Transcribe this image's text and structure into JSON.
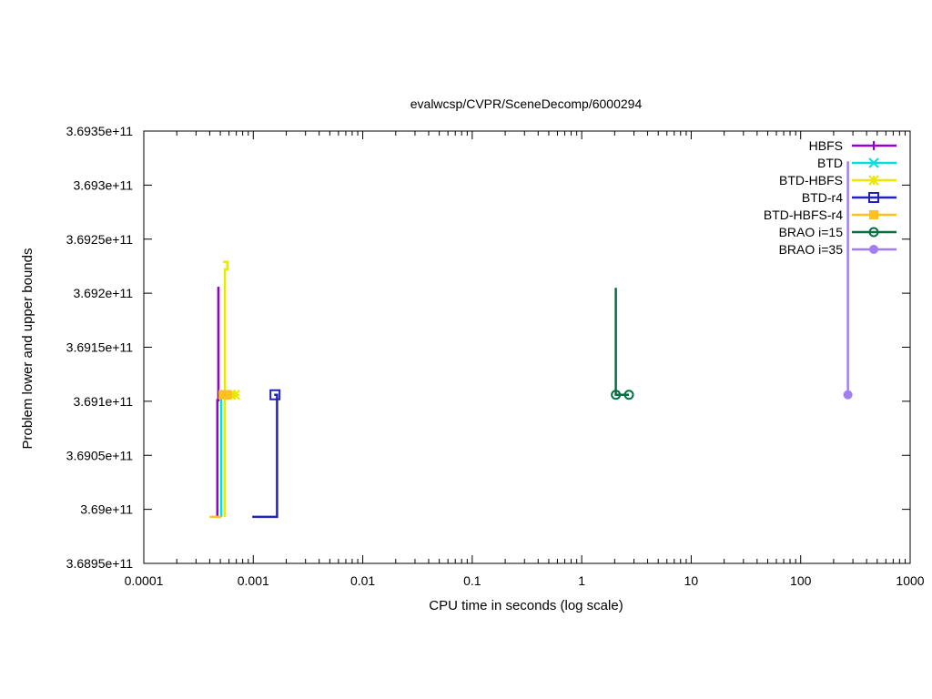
{
  "chart_data": {
    "type": "line",
    "title": "evalwcsp/CVPR/SceneDecomp/6000294",
    "xlabel": "CPU time in seconds (log scale)",
    "ylabel": "Problem lower and upper bounds",
    "xscale": "log",
    "xlim": [
      0.0001,
      1000
    ],
    "ylim": [
      368950000000,
      369350000000
    ],
    "x_ticks": [
      {
        "value": 0.0001,
        "label": "0.0001"
      },
      {
        "value": 0.001,
        "label": "0.001"
      },
      {
        "value": 0.01,
        "label": "0.01"
      },
      {
        "value": 0.1,
        "label": "0.1"
      },
      {
        "value": 1,
        "label": "1"
      },
      {
        "value": 10,
        "label": "10"
      },
      {
        "value": 100,
        "label": "100"
      },
      {
        "value": 1000,
        "label": "1000"
      }
    ],
    "y_ticks": [
      {
        "value": 368950000000,
        "label": "3.6895e+11"
      },
      {
        "value": 369000000000,
        "label": "3.69e+11"
      },
      {
        "value": 369050000000,
        "label": "3.6905e+11"
      },
      {
        "value": 369100000000,
        "label": "3.691e+11"
      },
      {
        "value": 369150000000,
        "label": "3.6915e+11"
      },
      {
        "value": 369200000000,
        "label": "3.692e+11"
      },
      {
        "value": 369250000000,
        "label": "3.6925e+11"
      },
      {
        "value": 369300000000,
        "label": "3.693e+11"
      },
      {
        "value": 369350000000,
        "label": "3.6935e+11"
      }
    ],
    "grid": false,
    "legend_position": "top-right",
    "series": [
      {
        "name": "HBFS",
        "color": "#9400d3",
        "marker": "plus",
        "lines": [
          [
            [
              0.00047,
              368993000000
            ],
            [
              0.00047,
              369101000000
            ],
            [
              0.00048,
              369101000000
            ],
            [
              0.00048,
              369205000000
            ],
            [
              0.00047,
              369205000000
            ]
          ],
          [
            [
              0.00047,
              369106000000
            ],
            [
              0.00055,
              369106000000
            ]
          ]
        ],
        "points": [
          [
            0.00052,
            369106000000
          ]
        ]
      },
      {
        "name": "BTD",
        "color": "#00e0e0",
        "marker": "x",
        "lines": [
          [
            [
              0.00051,
              368993000000
            ],
            [
              0.00051,
              369101000000
            ],
            [
              0.00052,
              369101000000
            ]
          ],
          [
            [
              0.0005,
              369106000000
            ],
            [
              0.00058,
              369106000000
            ]
          ]
        ],
        "points": [
          [
            0.00055,
            369106000000
          ]
        ]
      },
      {
        "name": "BTD-HBFS",
        "color": "#e8e800",
        "marker": "star",
        "lines": [
          [
            [
              0.00055,
              368993000000
            ],
            [
              0.00055,
              369222000000
            ],
            [
              0.00058,
              369222000000
            ],
            [
              0.00058,
              369229000000
            ],
            [
              0.00053,
              369229000000
            ]
          ],
          [
            [
              0.00055,
              369106000000
            ],
            [
              0.00068,
              369106000000
            ]
          ]
        ],
        "points": [
          [
            0.00062,
            369106000000
          ],
          [
            0.00068,
            369106000000
          ]
        ]
      },
      {
        "name": "BTD-r4",
        "color": "#2222bb",
        "marker": "square",
        "lines": [
          [
            [
              0.00098,
              368993000000
            ],
            [
              0.00165,
              368993000000
            ],
            [
              0.00165,
              369106000000
            ],
            [
              0.00155,
              369106000000
            ]
          ]
        ],
        "points": [
          [
            0.00158,
            369106000000
          ]
        ]
      },
      {
        "name": "BTD-HBFS-r4",
        "color": "#ffc020",
        "marker": "filled-square",
        "lines": [
          [
            [
              0.0004,
              368993000000
            ],
            [
              0.00051,
              368993000000
            ]
          ],
          [
            [
              0.0005,
              369106000000
            ],
            [
              0.00058,
              369106000000
            ]
          ]
        ],
        "points": [
          [
            0.00053,
            369106000000
          ],
          [
            0.00058,
            369106000000
          ]
        ]
      },
      {
        "name": "BRAO i=15",
        "color": "#007040",
        "marker": "circle",
        "lines": [
          [
            [
              2.05,
              369205000000
            ],
            [
              2.05,
              369106000000
            ],
            [
              2.7,
              369106000000
            ]
          ]
        ],
        "points": [
          [
            2.05,
            369106000000
          ],
          [
            2.7,
            369106000000
          ]
        ]
      },
      {
        "name": "BRAO i=35",
        "color": "#a080f0",
        "marker": "filled-circle",
        "lines": [
          [
            [
              270,
              369322000000
            ],
            [
              270,
              369106000000
            ]
          ]
        ],
        "points": [
          [
            270,
            369106000000
          ]
        ]
      }
    ]
  }
}
